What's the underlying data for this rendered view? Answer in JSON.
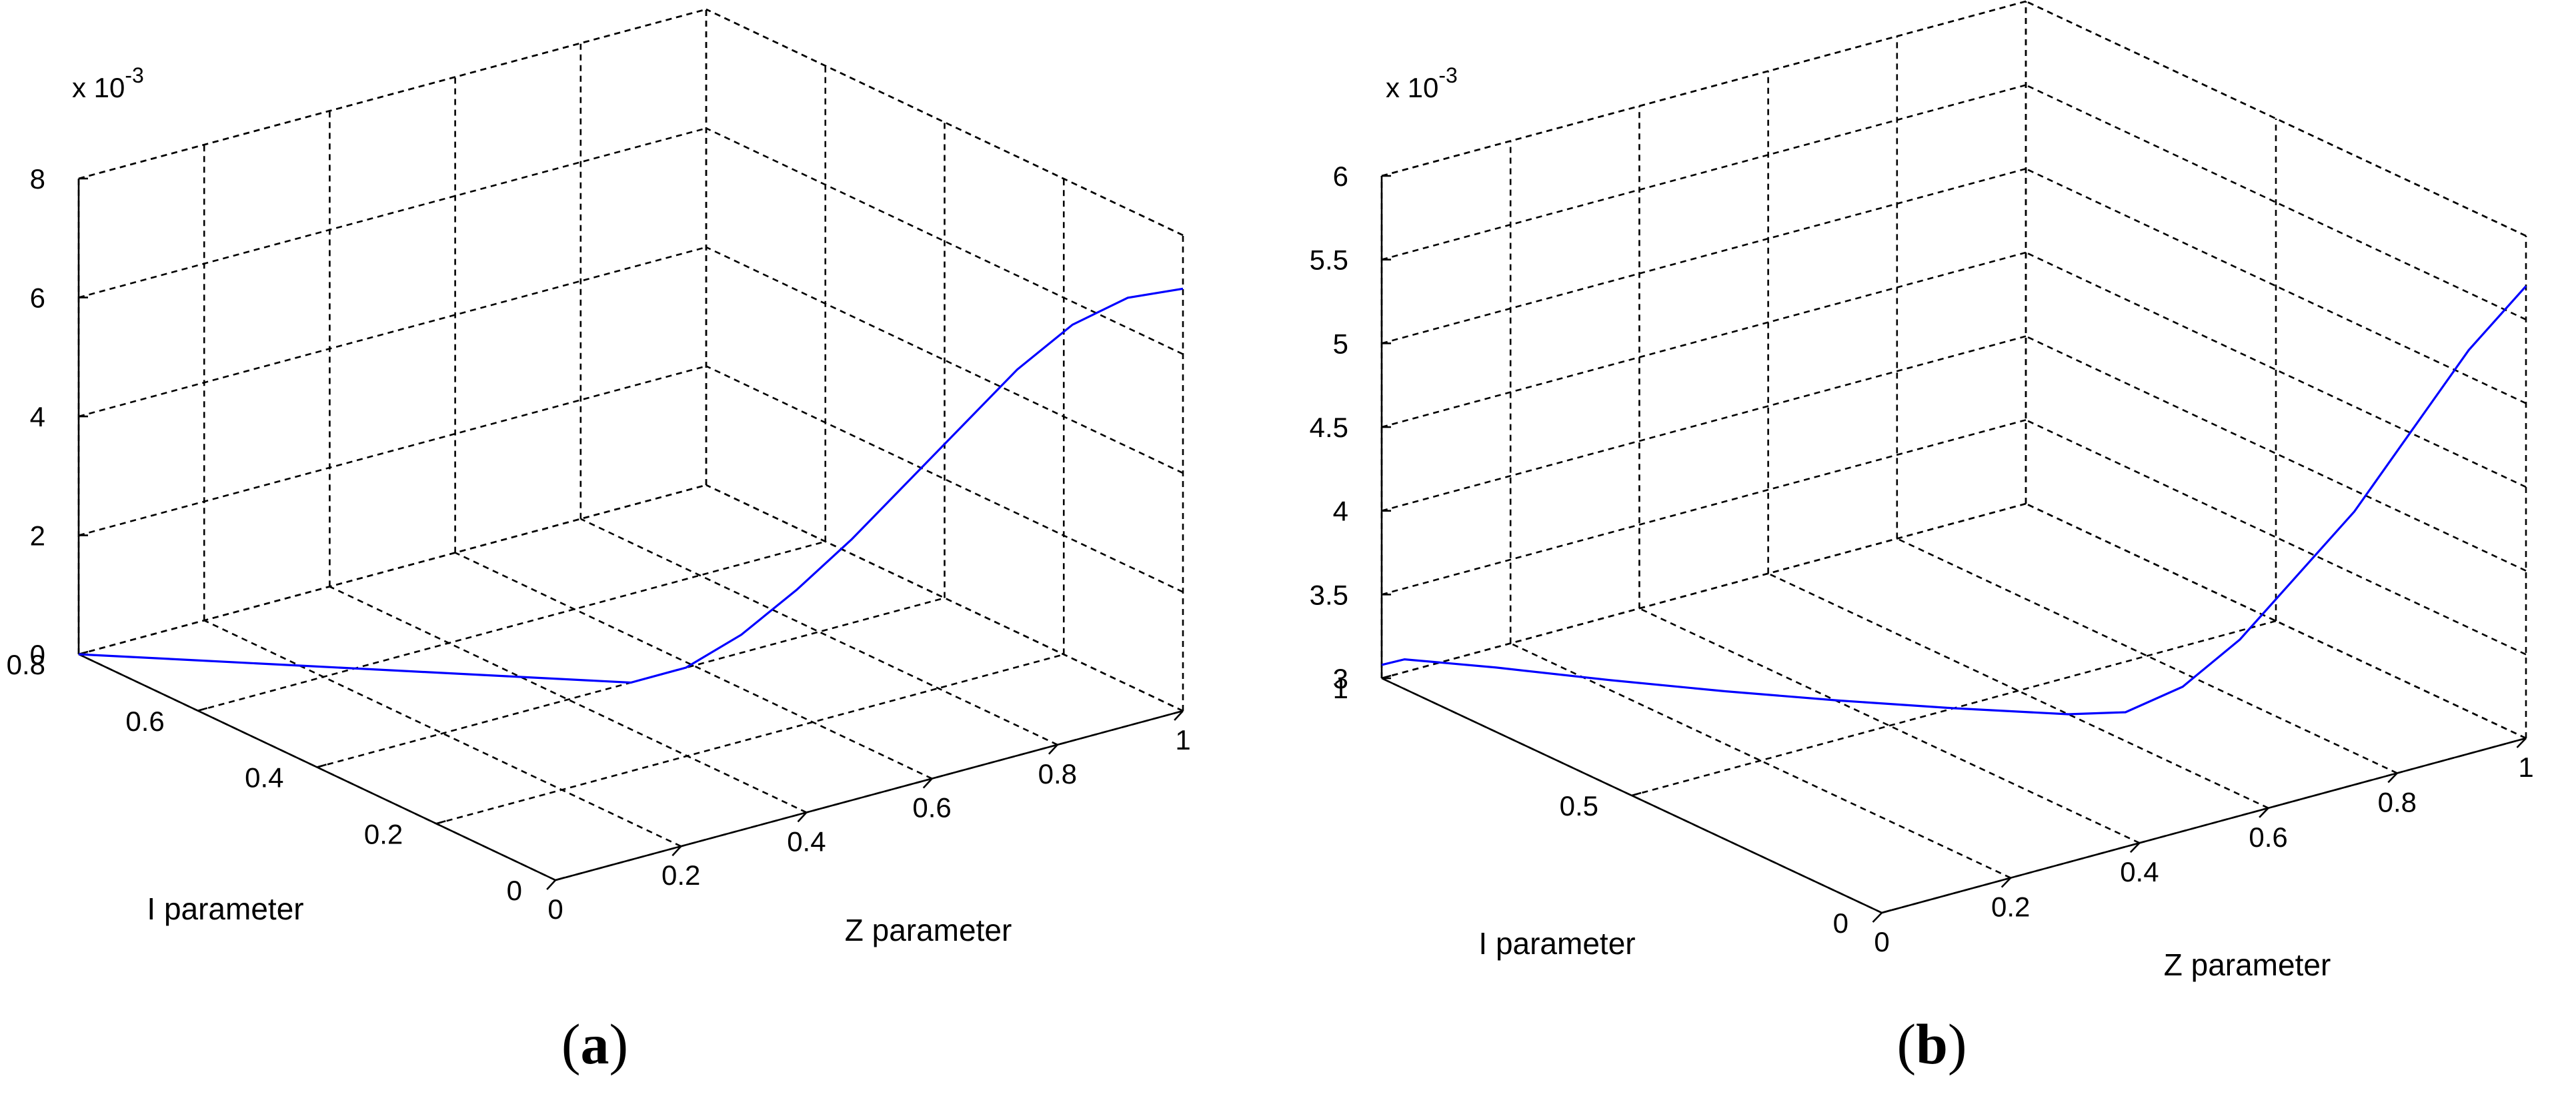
{
  "chart_data": [
    {
      "type": "line",
      "panel_label_open": "(",
      "panel_label_letter": "a",
      "panel_label_close": ")",
      "xlabel": "Z parameter",
      "ylabel": "I parameter",
      "zlabel": "",
      "z_exponent_base": "x 10",
      "z_exponent_power": "-3",
      "xlim": [
        0,
        1
      ],
      "ylim": [
        0,
        0.8
      ],
      "zlim": [
        0,
        0.008
      ],
      "xticks": [
        0,
        0.2,
        0.4,
        0.6,
        0.8,
        1
      ],
      "xtick_labels": [
        "0",
        "0.2",
        "0.4",
        "0.6",
        "0.8",
        "1"
      ],
      "yticks": [
        0,
        0.2,
        0.4,
        0.6,
        0.8
      ],
      "ytick_labels": [
        "0",
        "0.2",
        "0.4",
        "0.6",
        "0.8"
      ],
      "zticks": [
        0,
        0.002,
        0.004,
        0.006,
        0.008
      ],
      "ztick_labels": [
        "0",
        "2",
        "4",
        "6",
        "8"
      ],
      "grid": true,
      "series": [
        {
          "color": "#0000ff",
          "points": [
            {
              "x": 0.0,
              "y": 0.8,
              "z": 0.0
            },
            {
              "x": 0.1,
              "y": 0.72,
              "z": 0.0
            },
            {
              "x": 0.2,
              "y": 0.64,
              "z": 0.0
            },
            {
              "x": 0.3,
              "y": 0.56,
              "z": 0.0
            },
            {
              "x": 0.4,
              "y": 0.48,
              "z": 0.0
            },
            {
              "x": 0.5,
              "y": 0.4,
              "z": 0.0
            },
            {
              "x": 0.55,
              "y": 0.36,
              "z": 0.0003
            },
            {
              "x": 0.6,
              "y": 0.32,
              "z": 0.0009
            },
            {
              "x": 0.65,
              "y": 0.28,
              "z": 0.0017
            },
            {
              "x": 0.7,
              "y": 0.24,
              "z": 0.0026
            },
            {
              "x": 0.75,
              "y": 0.2,
              "z": 0.0036
            },
            {
              "x": 0.8,
              "y": 0.16,
              "z": 0.0046
            },
            {
              "x": 0.85,
              "y": 0.12,
              "z": 0.0056
            },
            {
              "x": 0.9,
              "y": 0.08,
              "z": 0.0064
            },
            {
              "x": 0.95,
              "y": 0.04,
              "z": 0.0069
            },
            {
              "x": 1.0,
              "y": 0.0,
              "z": 0.0071
            }
          ]
        }
      ]
    },
    {
      "type": "line",
      "panel_label_open": "(",
      "panel_label_letter": "b",
      "panel_label_close": ")",
      "xlabel": "Z parameter",
      "ylabel": "I parameter",
      "zlabel": "",
      "z_exponent_base": "x 10",
      "z_exponent_power": "-3",
      "xlim": [
        0,
        1
      ],
      "ylim": [
        0,
        1
      ],
      "zlim": [
        0.003,
        0.006
      ],
      "xticks": [
        0,
        0.2,
        0.4,
        0.6,
        0.8,
        1
      ],
      "xtick_labels": [
        "0",
        "0.2",
        "0.4",
        "0.6",
        "0.8",
        "1"
      ],
      "yticks": [
        0,
        0.5,
        1
      ],
      "ytick_labels": [
        "0",
        "0.5",
        "1"
      ],
      "zticks": [
        0.003,
        0.0035,
        0.004,
        0.0045,
        0.005,
        0.0055,
        0.006
      ],
      "ztick_labels": [
        "3",
        "3.5",
        "4",
        "4.5",
        "5",
        "5.5",
        "6"
      ],
      "grid": true,
      "series": [
        {
          "color": "#0000ff",
          "points": [
            {
              "x": 0.0,
              "y": 1.0,
              "z": 0.00308
            },
            {
              "x": 0.02,
              "y": 0.98,
              "z": 0.00312
            },
            {
              "x": 0.1,
              "y": 0.9,
              "z": 0.0031
            },
            {
              "x": 0.2,
              "y": 0.8,
              "z": 0.00306
            },
            {
              "x": 0.3,
              "y": 0.7,
              "z": 0.00303
            },
            {
              "x": 0.4,
              "y": 0.6,
              "z": 0.00301
            },
            {
              "x": 0.5,
              "y": 0.5,
              "z": 0.003
            },
            {
              "x": 0.6,
              "y": 0.4,
              "z": 0.003
            },
            {
              "x": 0.65,
              "y": 0.35,
              "z": 0.00303
            },
            {
              "x": 0.7,
              "y": 0.3,
              "z": 0.0032
            },
            {
              "x": 0.75,
              "y": 0.25,
              "z": 0.0035
            },
            {
              "x": 0.8,
              "y": 0.2,
              "z": 0.0039
            },
            {
              "x": 0.85,
              "y": 0.15,
              "z": 0.0043
            },
            {
              "x": 0.9,
              "y": 0.1,
              "z": 0.0048
            },
            {
              "x": 0.95,
              "y": 0.05,
              "z": 0.0053
            },
            {
              "x": 1.0,
              "y": 0.0,
              "z": 0.0057
            }
          ]
        }
      ]
    }
  ]
}
